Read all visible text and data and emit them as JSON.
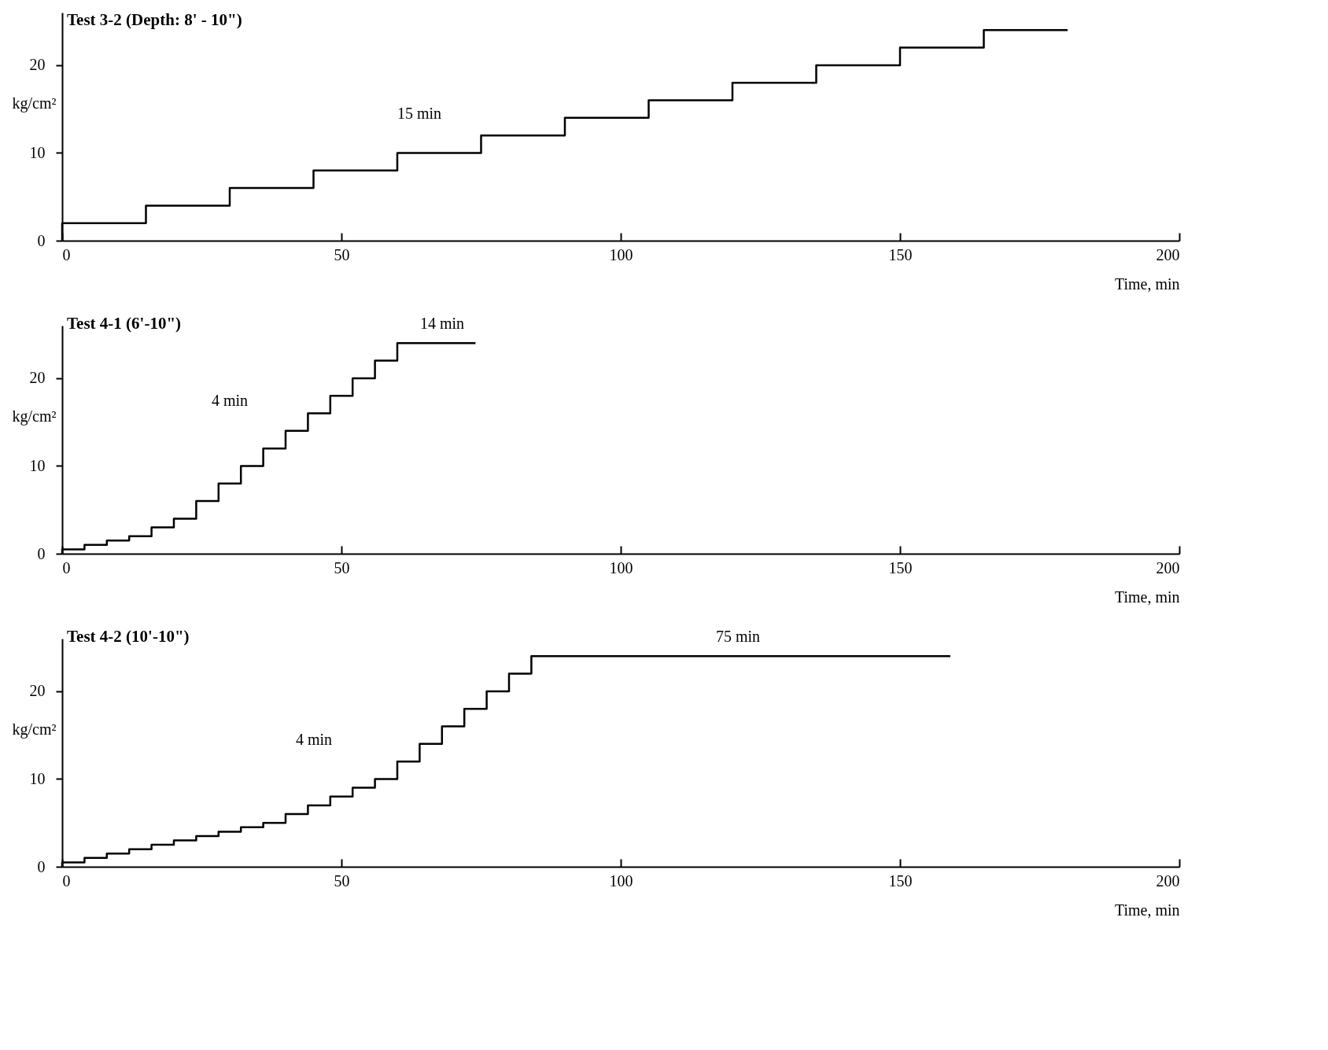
{
  "chart_data": [
    {
      "type": "step",
      "title": "Test 3-2  (Depth: 8' - 10\")",
      "xlabel": "Time, min",
      "ylabel": "kg/cm²",
      "xlim": [
        0,
        200
      ],
      "ylim": [
        0,
        26
      ],
      "xticks": [
        0,
        50,
        100,
        150,
        200
      ],
      "yticks": [
        0,
        10,
        20
      ],
      "x": [
        0,
        0,
        15,
        30,
        45,
        60,
        75,
        90,
        105,
        120,
        135,
        150,
        165,
        180
      ],
      "series": [
        {
          "color": "#000000",
          "values": [
            0,
            2,
            4,
            6,
            8,
            10,
            12,
            14,
            16,
            18,
            20,
            22,
            24,
            24
          ]
        }
      ],
      "annotations": [
        "15 min"
      ]
    },
    {
      "type": "step",
      "title": "Test 4-1  (6'-10\")",
      "xlabel": "Time, min",
      "ylabel": "kg/cm²",
      "xlim": [
        0,
        200
      ],
      "ylim": [
        0,
        26
      ],
      "xticks": [
        0,
        50,
        100,
        150,
        200
      ],
      "yticks": [
        0,
        10,
        20
      ],
      "x": [
        0,
        0,
        4,
        8,
        12,
        16,
        20,
        24,
        28,
        32,
        36,
        40,
        44,
        48,
        52,
        56,
        60,
        74
      ],
      "series": [
        {
          "color": "#000000",
          "values": [
            0,
            0.5,
            1,
            1.5,
            2,
            3,
            4,
            6,
            8,
            10,
            12,
            14,
            16,
            18,
            20,
            22,
            24,
            24
          ]
        }
      ],
      "annotations": [
        "14 min",
        "4 min"
      ]
    },
    {
      "type": "step",
      "title": "Test 4-2  (10'-10\")",
      "xlabel": "Time, min",
      "ylabel": "kg/cm²",
      "xlim": [
        0,
        200
      ],
      "ylim": [
        0,
        26
      ],
      "xticks": [
        0,
        50,
        100,
        150,
        200
      ],
      "yticks": [
        0,
        10,
        20
      ],
      "x": [
        0,
        0,
        4,
        8,
        12,
        16,
        20,
        24,
        28,
        32,
        36,
        40,
        44,
        48,
        52,
        56,
        60,
        64,
        68,
        72,
        76,
        80,
        84,
        159
      ],
      "series": [
        {
          "color": "#000000",
          "values": [
            0,
            0.5,
            1,
            1.5,
            2,
            2.5,
            3,
            3.5,
            4,
            4.5,
            5,
            6,
            7,
            8,
            9,
            10,
            12,
            14,
            16,
            18,
            20,
            22,
            24,
            24
          ]
        }
      ],
      "annotations": [
        "4 min",
        "75 min"
      ]
    }
  ]
}
